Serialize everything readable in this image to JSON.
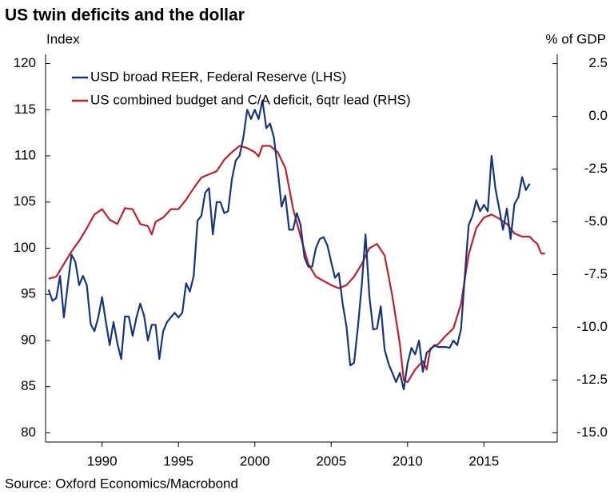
{
  "chart_data": {
    "type": "line",
    "title": "US twin deficits and the dollar",
    "ylabel": "Index",
    "y2label": "% of GDP",
    "source": "Source: Oxford Economics/Macrobond",
    "xlim": [
      1986.3,
      2019.8
    ],
    "xticks": [
      1990,
      1995,
      2000,
      2005,
      2010,
      2015
    ],
    "ylim": [
      79,
      121
    ],
    "yticks": [
      80,
      85,
      90,
      95,
      100,
      105,
      110,
      115,
      120
    ],
    "y2lim": [
      -15.44,
      2.94
    ],
    "y2ticks": [
      2.5,
      {
        "value": 0,
        "label": "0.0"
      },
      -2.5,
      {
        "value": -5,
        "label": "-5.0"
      },
      -7.5,
      {
        "value": -10,
        "label": "-10.0"
      },
      -12.5,
      {
        "value": -15,
        "label": "-15.0"
      }
    ],
    "series": [
      {
        "name": "USD broad REER, Federal Reserve  (LHS)",
        "color": "#17357a",
        "axis": "y",
        "x": [
          1986.5,
          1986.75,
          1987,
          1987.25,
          1987.5,
          1987.75,
          1988,
          1988.25,
          1988.5,
          1988.75,
          1989,
          1989.25,
          1989.5,
          1989.75,
          1990,
          1990.25,
          1990.5,
          1990.75,
          1991,
          1991.25,
          1991.5,
          1991.75,
          1992,
          1992.25,
          1992.5,
          1992.75,
          1993,
          1993.25,
          1993.5,
          1993.75,
          1994,
          1994.25,
          1994.5,
          1994.75,
          1995,
          1995.25,
          1995.5,
          1995.75,
          1996,
          1996.25,
          1996.5,
          1996.75,
          1997,
          1997.25,
          1997.5,
          1997.75,
          1998,
          1998.25,
          1998.5,
          1998.75,
          1999,
          1999.25,
          1999.5,
          1999.75,
          2000,
          2000.25,
          2000.5,
          2000.75,
          2001,
          2001.25,
          2001.5,
          2001.75,
          2002,
          2002.25,
          2002.5,
          2002.75,
          2003,
          2003.25,
          2003.5,
          2003.75,
          2004,
          2004.25,
          2004.5,
          2004.75,
          2005,
          2005.25,
          2005.5,
          2005.75,
          2006,
          2006.25,
          2006.5,
          2006.75,
          2007,
          2007.25,
          2007.5,
          2007.75,
          2008,
          2008.25,
          2008.5,
          2008.75,
          2009,
          2009.25,
          2009.5,
          2009.75,
          2010,
          2010.25,
          2010.5,
          2010.75,
          2011,
          2011.25,
          2011.5,
          2011.75,
          2012,
          2012.25,
          2012.5,
          2012.75,
          2013,
          2013.25,
          2013.5,
          2013.75,
          2014,
          2014.25,
          2014.5,
          2014.75,
          2015,
          2015.25,
          2015.5,
          2015.75,
          2016,
          2016.25,
          2016.5,
          2016.75,
          2017,
          2017.25,
          2017.5,
          2017.75,
          2018
        ],
        "values": [
          95.5,
          94.3,
          94.6,
          97,
          92.5,
          96,
          99.3,
          98.5,
          96,
          97,
          96,
          91.8,
          91,
          92.5,
          94.7,
          92,
          89.5,
          92,
          89.7,
          88,
          92.6,
          92.6,
          90.5,
          92.5,
          94,
          92.7,
          90,
          91.7,
          91.7,
          88,
          91,
          92,
          92.5,
          93,
          92.5,
          93,
          96.2,
          95.3,
          97,
          103,
          103.5,
          106,
          106.5,
          101.5,
          105,
          105,
          103.8,
          104,
          107.5,
          109.5,
          110,
          112,
          115,
          114,
          115,
          114,
          116,
          113,
          113.5,
          112,
          108.5,
          104.5,
          105.7,
          102,
          102,
          103.8,
          102.5,
          99,
          98,
          98,
          100,
          101,
          101.2,
          100.3,
          98.5,
          96.8,
          97.3,
          94,
          91.5,
          87.3,
          87.6,
          91.5,
          96,
          101.5,
          94.8,
          91.2,
          91.3,
          93.7,
          89,
          87.5,
          86.5,
          85.5,
          86.5,
          84.7,
          87.5,
          89.2,
          88.5,
          90,
          86.6,
          88.7,
          89,
          89.5,
          89.3,
          89.3,
          89.3,
          89.2,
          90,
          89.5,
          91.2,
          97,
          102.5,
          103.5,
          105.2,
          104,
          104.7,
          104,
          110,
          106.5,
          104.3,
          102,
          104.3,
          101,
          104.8,
          105.5,
          107.7,
          106.3,
          107
        ]
      },
      {
        "name": "US combined budget and C/A deficit, 6qtr lead (RHS)",
        "color": "#c0202a",
        "axis": "y2",
        "x": [
          1986.5,
          1987,
          1987.5,
          1988,
          1988.5,
          1989,
          1989.5,
          1990,
          1990.5,
          1991,
          1991.5,
          1992,
          1992.5,
          1993,
          1993.25,
          1993.5,
          1994,
          1994.5,
          1995,
          1995.5,
          1996,
          1996.5,
          1997,
          1997.5,
          1998,
          1998.5,
          1999,
          1999.5,
          2000,
          2000.25,
          2000.5,
          2001,
          2001.5,
          2002,
          2002.5,
          2003,
          2003.5,
          2004,
          2004.5,
          2005,
          2005.5,
          2006,
          2006.5,
          2007,
          2007.5,
          2008,
          2008.5,
          2009,
          2009.5,
          2009.75,
          2010,
          2010.5,
          2011,
          2011.25,
          2011.5,
          2012,
          2012.5,
          2013,
          2013.5,
          2014,
          2014.5,
          2015,
          2015.5,
          2016,
          2016.5,
          2017,
          2017.5,
          2018,
          2018.25,
          2018.5,
          2018.75,
          2019
        ],
        "values": [
          -7.7,
          -7.6,
          -7.0,
          -6.4,
          -5.9,
          -5.3,
          -4.65,
          -4.4,
          -4.9,
          -5.1,
          -4.35,
          -4.4,
          -5.1,
          -5.2,
          -5.6,
          -5.0,
          -4.8,
          -4.4,
          -4.4,
          -3.95,
          -3.4,
          -2.9,
          -2.75,
          -2.6,
          -2.05,
          -1.7,
          -1.4,
          -1.5,
          -1.7,
          -1.9,
          -1.4,
          -1.4,
          -1.7,
          -2.45,
          -4.35,
          -5.7,
          -7.0,
          -7.6,
          -7.8,
          -8.0,
          -8.15,
          -8.0,
          -7.6,
          -7.0,
          -6.25,
          -6.05,
          -6.6,
          -8.5,
          -10.8,
          -12.5,
          -12.6,
          -12.0,
          -11.6,
          -12.0,
          -11.0,
          -10.8,
          -10.4,
          -10.05,
          -8.9,
          -6.55,
          -5.3,
          -4.8,
          -4.65,
          -4.85,
          -5.1,
          -5.55,
          -5.7,
          -5.7,
          -5.9,
          -6.05,
          -6.5,
          -6.5
        ]
      }
    ]
  }
}
